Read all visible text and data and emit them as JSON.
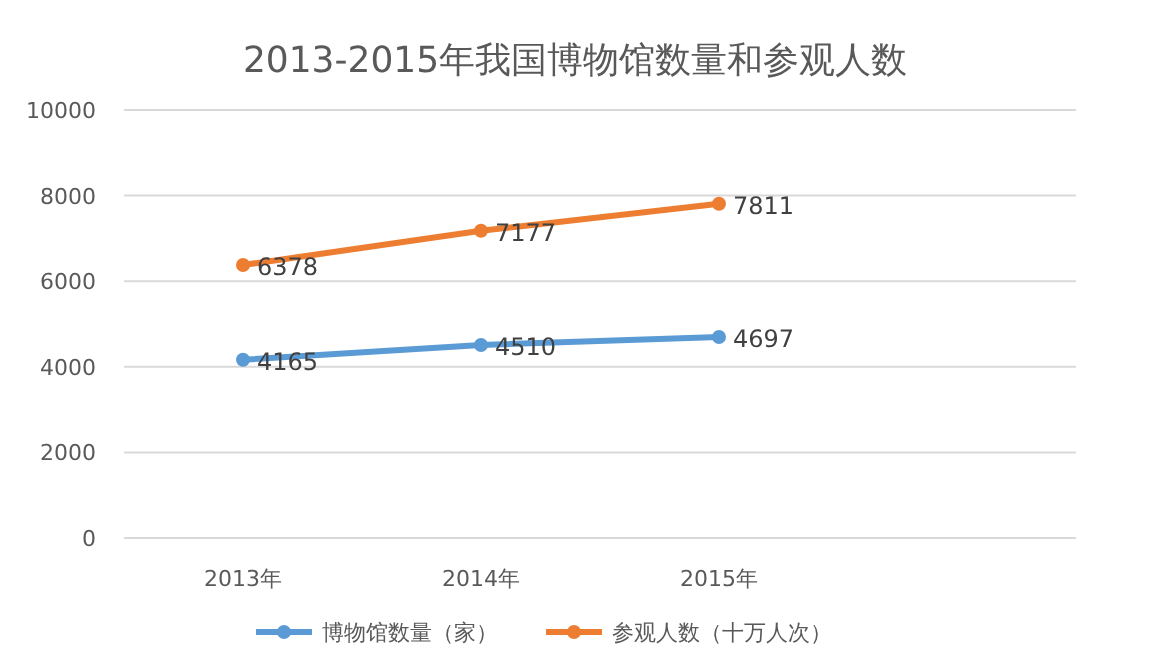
{
  "chart_data": {
    "type": "line",
    "title": "2013-2015年我国博物馆数量和参观人数",
    "categories": [
      "2013年",
      "2014年",
      "2015年",
      null
    ],
    "series": [
      {
        "name": "博物馆数量（家）",
        "color": "#5b9bd5",
        "values": [
          4165,
          4510,
          4697,
          null
        ]
      },
      {
        "name": "参观人数（十万人次）",
        "color": "#ed7d31",
        "values": [
          6378,
          7177,
          7811,
          null
        ]
      }
    ],
    "ylim": [
      0,
      10000
    ],
    "yticks": [
      0,
      2000,
      4000,
      6000,
      8000,
      10000
    ],
    "grid": "y",
    "legend": "bottom",
    "marker": "circle",
    "line_style": "solid",
    "data_labels": true
  }
}
